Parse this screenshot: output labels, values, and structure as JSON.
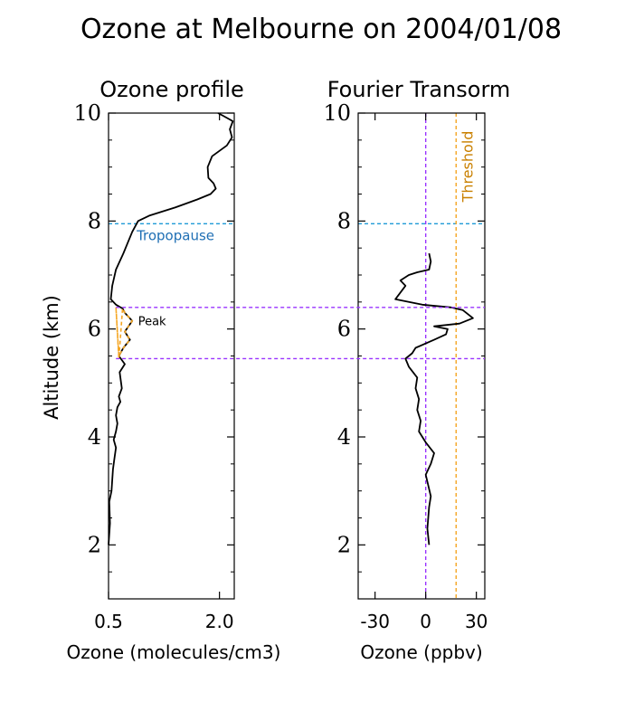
{
  "figure": {
    "title": "Ozone at Melbourne on 2004/01/08",
    "shared_ylabel": "Altitude (km)"
  },
  "chart_data": [
    {
      "type": "line",
      "title": "Ozone profile",
      "xlabel": "Ozone (molecules/cm3)",
      "ylabel": "Altitude (km)",
      "xlim": [
        0.5,
        2.2
      ],
      "ylim": [
        1,
        10
      ],
      "xticks": [
        0.5,
        2.0
      ],
      "xtick_labels": [
        "0.5",
        "2.0"
      ],
      "yticks": [
        2,
        4,
        6,
        8,
        10
      ],
      "ytick_labels": [
        "2",
        "4",
        "6",
        "8",
        "10"
      ],
      "grid": false,
      "colors": {
        "profile": "#000000",
        "tropopause": "#1f9ad6",
        "tropopause_text": "#1f6fb4",
        "peak_bounds": "#9933ff",
        "peak_outline": "#f5a623"
      },
      "series": [
        {
          "x": [
            0.5,
            0.52,
            0.51,
            0.54,
            0.55,
            0.56,
            0.58,
            0.6,
            0.57,
            0.6,
            0.62,
            0.6,
            0.62,
            0.66,
            0.64,
            0.68,
            0.65,
            0.72,
            0.64,
            0.7,
            0.79,
            0.72,
            0.82,
            0.72,
            0.69,
            0.6,
            0.53,
            0.55,
            0.6,
            0.7,
            0.76,
            0.82,
            0.9,
            1.05,
            1.4,
            1.7,
            1.88,
            1.95,
            1.92,
            1.85,
            1.84,
            1.9,
            2.1,
            2.17,
            2.14,
            2.18,
            2.05,
            1.98
          ],
          "y": [
            2.0,
            2.4,
            2.8,
            3.0,
            3.2,
            3.4,
            3.6,
            3.8,
            3.95,
            4.1,
            4.25,
            4.4,
            4.55,
            4.65,
            4.75,
            4.9,
            5.2,
            5.35,
            5.5,
            5.65,
            5.8,
            5.95,
            6.15,
            6.3,
            6.38,
            6.45,
            6.55,
            6.8,
            7.1,
            7.4,
            7.6,
            7.8,
            8.0,
            8.1,
            8.25,
            8.4,
            8.5,
            8.6,
            8.7,
            8.8,
            9.0,
            9.2,
            9.4,
            9.55,
            9.7,
            9.85,
            9.95,
            10.0
          ]
        }
      ],
      "reference_lines": {
        "tropopause_altitude": 7.95,
        "peak_bounds": [
          6.4,
          5.45
        ]
      },
      "annotations": {
        "tropopause_label": "Tropopause",
        "peak_label": "Peak"
      }
    },
    {
      "type": "line",
      "title": "Fourier Transorm",
      "xlabel": "Ozone (ppbv)",
      "xlim": [
        -40,
        35
      ],
      "ylim": [
        1,
        10
      ],
      "xticks": [
        -30,
        0,
        30
      ],
      "xtick_labels": [
        "-30",
        "0",
        "30"
      ],
      "yticks": [
        2,
        4,
        6,
        8,
        10
      ],
      "ytick_labels": [
        "2",
        "4",
        "6",
        "8",
        "10"
      ],
      "grid": false,
      "colors": {
        "signal": "#000000",
        "zero_line": "#9933ff",
        "threshold": "#f5a623",
        "threshold_text": "#c98000",
        "tropopause": "#1f9ad6",
        "peak_bounds": "#9933ff"
      },
      "series": [
        {
          "x": [
            2,
            1,
            2,
            3,
            0,
            3,
            5,
            0,
            -4,
            -3,
            -5,
            -4,
            -6,
            -5,
            -10,
            -12,
            -8,
            -6,
            5,
            12,
            13,
            5,
            20,
            28,
            22,
            15,
            -2,
            -18,
            -12,
            -15,
            -10,
            -5,
            2,
            3,
            2
          ],
          "y": [
            2.0,
            2.3,
            2.7,
            2.9,
            3.3,
            3.5,
            3.7,
            3.9,
            4.1,
            4.3,
            4.5,
            4.7,
            4.9,
            5.1,
            5.3,
            5.45,
            5.55,
            5.65,
            5.8,
            5.9,
            6.0,
            6.05,
            6.1,
            6.2,
            6.35,
            6.4,
            6.45,
            6.55,
            6.8,
            6.9,
            7.0,
            7.05,
            7.1,
            7.25,
            7.4
          ]
        }
      ],
      "reference_lines": {
        "zero": 0,
        "threshold": 18,
        "tropopause_altitude": 7.95,
        "peak_bounds": [
          6.4,
          5.45
        ]
      },
      "annotations": {
        "threshold_label": "Threshold"
      }
    }
  ]
}
